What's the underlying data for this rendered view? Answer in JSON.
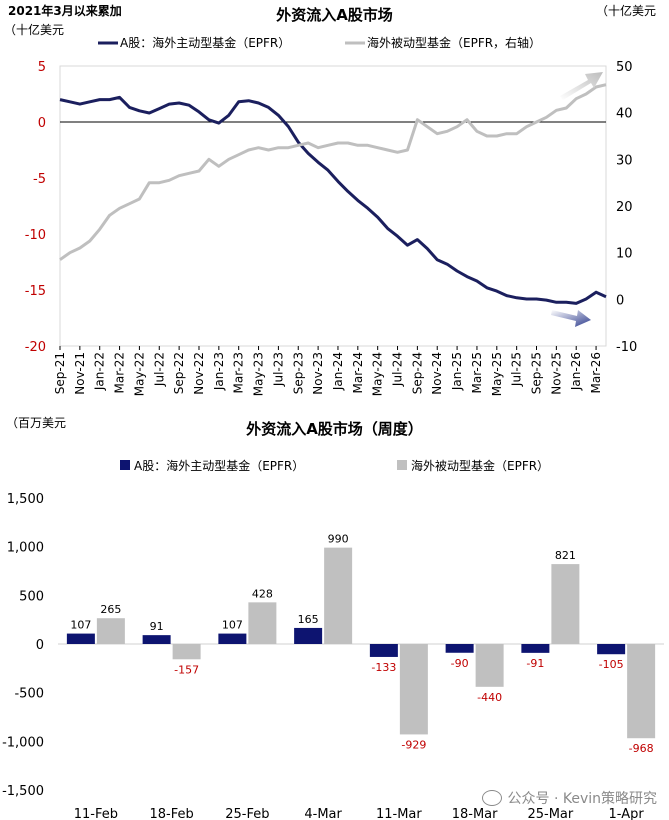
{
  "chart_data": [
    {
      "type": "line",
      "title": "外资流入A股市场",
      "subtitle_left": "2021年3月以来累加",
      "left_unit": "（十亿美元",
      "right_unit": "（十亿美元",
      "x_tick_labels": [
        "Sep-21",
        "Nov-21",
        "Jan-22",
        "Mar-22",
        "May-22",
        "Jul-22",
        "Sep-22",
        "Nov-22",
        "Jan-23",
        "Mar-23",
        "May-23",
        "Jul-23",
        "Sep-23",
        "Nov-23",
        "Jan-24",
        "Mar-24",
        "May-24",
        "Jul-24",
        "Sep-24",
        "Nov-24",
        "Jan-25",
        "Mar-25",
        "May-25",
        "Jul-25",
        "Sep-25",
        "Nov-25",
        "Jan-26",
        "Mar-26"
      ],
      "ylim_left": [
        -20,
        5
      ],
      "yticks_left": [
        5,
        0,
        -5,
        -10,
        -15,
        -20
      ],
      "ylim_right": [
        -10,
        50
      ],
      "yticks_right": [
        50,
        40,
        30,
        20,
        10,
        0,
        -10
      ],
      "legend_position": "top",
      "series": [
        {
          "name": "A股：海外主动型基金（EPFR）",
          "axis": "left",
          "color": "#1b1f5e",
          "x": [
            0,
            0.5,
            1,
            1.5,
            2,
            2.5,
            3,
            3.5,
            4,
            4.5,
            5,
            5.5,
            6,
            6.5,
            7,
            7.5,
            8,
            8.5,
            9,
            9.5,
            10,
            10.5,
            11,
            11.5,
            12,
            12.5,
            13,
            13.5,
            14,
            14.5,
            15,
            15.5,
            16,
            16.5,
            17,
            17.5,
            18,
            18.5,
            19,
            19.5,
            20,
            20.5,
            21,
            21.5,
            22,
            22.5,
            23,
            23.5,
            24,
            24.5,
            25,
            25.5,
            26,
            26.5,
            27,
            27.5
          ],
          "values": [
            2.0,
            1.8,
            1.6,
            1.8,
            2.0,
            2.0,
            2.2,
            1.3,
            1.0,
            0.8,
            1.2,
            1.6,
            1.7,
            1.5,
            0.9,
            0.2,
            -0.1,
            0.6,
            1.8,
            1.9,
            1.7,
            1.3,
            0.6,
            -0.4,
            -1.8,
            -2.8,
            -3.6,
            -4.3,
            -5.3,
            -6.2,
            -7.0,
            -7.7,
            -8.5,
            -9.5,
            -10.2,
            -11.0,
            -10.5,
            -11.3,
            -12.3,
            -12.7,
            -13.3,
            -13.8,
            -14.2,
            -14.8,
            -15.1,
            -15.5,
            -15.7,
            -15.8,
            -15.8,
            -15.9,
            -16.1,
            -16.1,
            -16.2,
            -15.8,
            -15.2,
            -15.6
          ]
        },
        {
          "name": "海外被动型基金（EPFR，右轴）",
          "axis": "right",
          "color": "#bfbfbf",
          "x": [
            0,
            0.5,
            1,
            1.5,
            2,
            2.5,
            3,
            3.5,
            4,
            4.5,
            5,
            5.5,
            6,
            6.5,
            7,
            7.5,
            8,
            8.5,
            9,
            9.5,
            10,
            10.5,
            11,
            11.5,
            12,
            12.5,
            13,
            13.5,
            14,
            14.5,
            15,
            15.5,
            16,
            16.5,
            17,
            17.5,
            18,
            18.5,
            19,
            19.5,
            20,
            20.5,
            21,
            21.5,
            22,
            22.5,
            23,
            23.5,
            24,
            24.5,
            25,
            25.5,
            26,
            26.5,
            27,
            27.5
          ],
          "values": [
            8.5,
            10.0,
            11.0,
            12.5,
            15.0,
            18.0,
            19.5,
            20.5,
            21.5,
            25.0,
            25.0,
            25.5,
            26.5,
            27.0,
            27.5,
            30.0,
            28.5,
            30.0,
            31.0,
            32.0,
            32.5,
            32.0,
            32.5,
            32.5,
            33.0,
            33.5,
            32.5,
            33.0,
            33.5,
            33.5,
            33.0,
            33.0,
            32.5,
            32.0,
            31.5,
            32.0,
            38.5,
            37.0,
            35.5,
            36.0,
            37.0,
            38.5,
            36.0,
            35.0,
            35.0,
            35.5,
            35.5,
            37.0,
            38.0,
            39.0,
            40.5,
            41.0,
            43.0,
            44.0,
            45.5,
            46.0
          ]
        }
      ]
    },
    {
      "type": "bar",
      "title": "外资流入A股市场（周度）",
      "unit_label": "（百万美元",
      "categories": [
        "11-Feb",
        "18-Feb",
        "25-Feb",
        "4-Mar",
        "11-Mar",
        "18-Mar",
        "25-Mar",
        "1-Apr"
      ],
      "ylim": [
        -1500,
        1500
      ],
      "yticks": [
        1500,
        1000,
        500,
        0,
        -500,
        -1000,
        -1500
      ],
      "ytick_labels": [
        "1,500",
        "1,000",
        "500",
        "0",
        "-500",
        "-1,000",
        "-1,500"
      ],
      "legend_position": "top",
      "series": [
        {
          "name": "A股：海外主动型基金（EPFR）",
          "color": "#0d1470",
          "values": [
            107,
            91,
            107,
            165,
            -133,
            -90,
            -91,
            -105
          ]
        },
        {
          "name": "海外被动型基金（EPFR）",
          "color": "#c0c0c0",
          "values": [
            265,
            -157,
            428,
            990,
            -929,
            -440,
            821,
            -968
          ]
        }
      ]
    }
  ],
  "watermark": "公众号 · Kevin策略研究"
}
